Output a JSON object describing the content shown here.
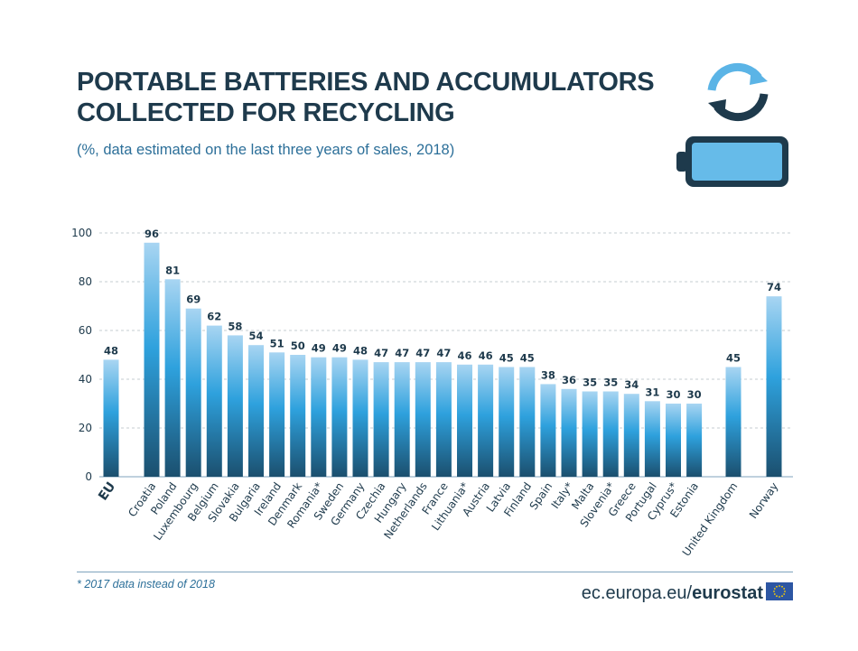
{
  "header": {
    "title_line1": "PORTABLE BATTERIES AND ACCUMULATORS",
    "title_line2": "COLLECTED FOR RECYCLING",
    "subtitle": "(%, data estimated on the last three years of sales, 2018)"
  },
  "footer": {
    "footnote": "* 2017 data instead of 2018",
    "site_prefix": "ec.europa.eu/",
    "site_brand": "eurostat"
  },
  "icons": {
    "recycle": "recycle-icon",
    "battery": "battery-icon",
    "flag": "eu-flag-icon"
  },
  "colors": {
    "bar_top": "#a8d5f2",
    "bar_mid": "#2ea1dd",
    "bar_bottom": "#1b4f6e",
    "text_dark": "#1e3a4c",
    "accent": "#2c6f99"
  },
  "chart_data": {
    "type": "bar",
    "categories": [
      "EU",
      "Croatia",
      "Poland",
      "Luxembourg",
      "Belgium",
      "Slovakia",
      "Bulgaria",
      "Ireland",
      "Denmark",
      "Romania*",
      "Sweden",
      "Germany",
      "Czechia",
      "Hungary",
      "Netherlands",
      "France",
      "Lithuania*",
      "Austria",
      "Latvia",
      "Finland",
      "Spain",
      "Italy*",
      "Malta",
      "Slovenia*",
      "Greece",
      "Portugal",
      "Cyprus*",
      "Estonia",
      "United Kingdom",
      "Norway"
    ],
    "values": [
      48,
      96,
      81,
      69,
      62,
      58,
      54,
      51,
      50,
      49,
      49,
      48,
      47,
      47,
      47,
      47,
      46,
      46,
      45,
      45,
      38,
      36,
      35,
      35,
      34,
      31,
      30,
      30,
      45,
      74
    ],
    "yticks": [
      0,
      20,
      40,
      60,
      80,
      100
    ],
    "ylim": [
      0,
      100
    ],
    "grid": true
  }
}
